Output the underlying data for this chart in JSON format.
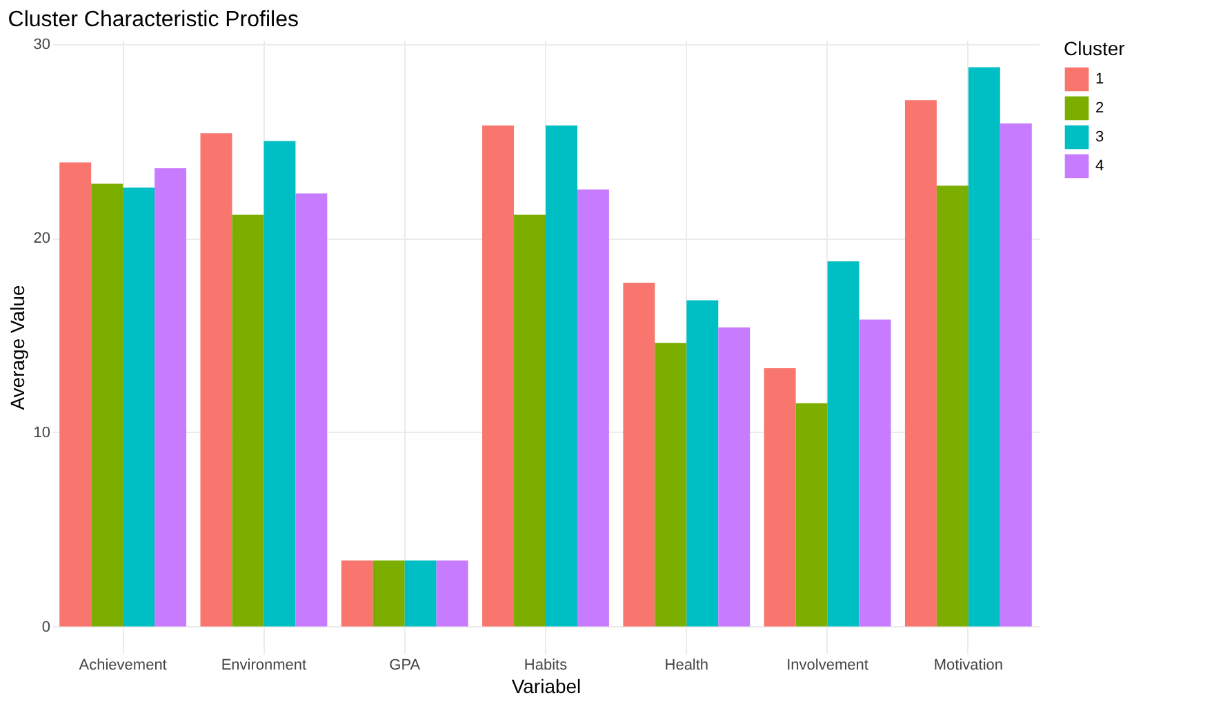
{
  "chart_data": {
    "type": "bar",
    "title": "Cluster Characteristic Profiles",
    "xlabel": "Variabel",
    "ylabel": "Average Value",
    "legend_title": "Cluster",
    "categories": [
      "Achievement",
      "Environment",
      "GPA",
      "Habits",
      "Health",
      "Involvement",
      "Motivation"
    ],
    "series": [
      {
        "name": "1",
        "color": "#f8766d",
        "values": [
          23.9,
          25.4,
          3.4,
          25.8,
          17.7,
          13.3,
          27.1
        ]
      },
      {
        "name": "2",
        "color": "#7cae00",
        "values": [
          22.8,
          21.2,
          3.4,
          21.2,
          14.6,
          11.5,
          22.7
        ]
      },
      {
        "name": "3",
        "color": "#00bfc4",
        "values": [
          22.6,
          25.0,
          3.4,
          25.8,
          16.8,
          18.8,
          28.8
        ]
      },
      {
        "name": "4",
        "color": "#c77cff",
        "values": [
          23.6,
          22.3,
          3.4,
          22.5,
          15.4,
          15.8,
          25.9
        ]
      }
    ],
    "ylim": [
      -1.4,
      30.2
    ],
    "yticks": [
      0,
      10,
      20,
      30
    ],
    "grid": true,
    "legend": "right"
  }
}
